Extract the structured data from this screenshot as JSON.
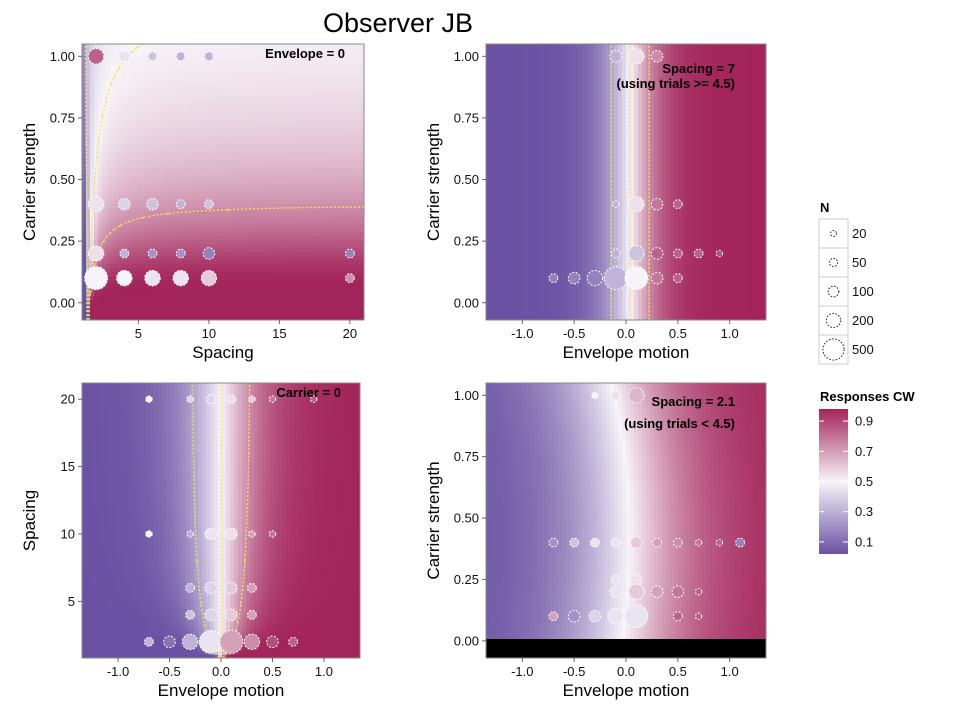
{
  "figure": {
    "title": "Observer JB",
    "legend_n_title": "N",
    "legend_n_entries": [
      "20",
      "50",
      "100",
      "200",
      "500"
    ],
    "legend_n_values": [
      20,
      50,
      100,
      200,
      500
    ],
    "legend_color_title": "Responses CW",
    "legend_color_ticks": [
      "0.9",
      "0.7",
      "0.5",
      "0.3",
      "0.1"
    ],
    "legend_color_values": [
      0.9,
      0.7,
      0.5,
      0.3,
      0.1
    ]
  },
  "colors": {
    "low": "#6a51a3",
    "mid": "#f7f4f9",
    "high": "#a3245a",
    "contour": "#f2e14a",
    "frame": "#888888"
  },
  "chart_data": [
    {
      "type": "heatmap",
      "panel_label": "Envelope = 0",
      "annotation": "",
      "xlabel": "Spacing",
      "ylabel": "Carrier strength",
      "xlim": [
        1,
        21
      ],
      "ylim": [
        -0.07,
        1.05
      ],
      "xticks": [
        5,
        10,
        15,
        20
      ],
      "xticklabels": [
        "5",
        "10",
        "15",
        "20"
      ],
      "yticks": [
        0,
        0.25,
        0.5,
        0.75,
        1
      ],
      "yticklabels": [
        "0.00",
        "0.25",
        "0.50",
        "0.75",
        "1.00"
      ],
      "contour_levels": [
        0.25,
        0.5,
        0.75
      ],
      "points": [
        {
          "x": 2,
          "y": 1.0,
          "n": 200,
          "p": 0.85
        },
        {
          "x": 4,
          "y": 1.0,
          "n": 100,
          "p": 0.45
        },
        {
          "x": 6,
          "y": 1.0,
          "n": 50,
          "p": 0.35
        },
        {
          "x": 8,
          "y": 1.0,
          "n": 50,
          "p": 0.3
        },
        {
          "x": 10,
          "y": 1.0,
          "n": 50,
          "p": 0.3
        },
        {
          "x": 2,
          "y": 0.4,
          "n": 200,
          "p": 0.45
        },
        {
          "x": 4,
          "y": 0.4,
          "n": 100,
          "p": 0.4
        },
        {
          "x": 6,
          "y": 0.4,
          "n": 100,
          "p": 0.35
        },
        {
          "x": 8,
          "y": 0.4,
          "n": 50,
          "p": 0.3
        },
        {
          "x": 10,
          "y": 0.4,
          "n": 50,
          "p": 0.35
        },
        {
          "x": 2,
          "y": 0.2,
          "n": 200,
          "p": 0.55
        },
        {
          "x": 4,
          "y": 0.2,
          "n": 50,
          "p": 0.3
        },
        {
          "x": 6,
          "y": 0.2,
          "n": 50,
          "p": 0.2
        },
        {
          "x": 8,
          "y": 0.2,
          "n": 50,
          "p": 0.2
        },
        {
          "x": 10,
          "y": 0.2,
          "n": 100,
          "p": 0.15
        },
        {
          "x": 20,
          "y": 0.2,
          "n": 50,
          "p": 0.15
        },
        {
          "x": 2,
          "y": 0.1,
          "n": 500,
          "p": 0.5
        },
        {
          "x": 4,
          "y": 0.1,
          "n": 200,
          "p": 0.5
        },
        {
          "x": 6,
          "y": 0.1,
          "n": 200,
          "p": 0.45
        },
        {
          "x": 8,
          "y": 0.1,
          "n": 200,
          "p": 0.45
        },
        {
          "x": 10,
          "y": 0.1,
          "n": 200,
          "p": 0.6
        },
        {
          "x": 20,
          "y": 0.1,
          "n": 50,
          "p": 0.75
        }
      ]
    },
    {
      "type": "heatmap",
      "panel_label": "Spacing = 7",
      "annotation": "(using trials >= 4.5)",
      "xlabel": "Envelope motion",
      "ylabel": "Carrier strength",
      "xlim": [
        -1.35,
        1.35
      ],
      "ylim": [
        -0.07,
        1.05
      ],
      "xticks": [
        -1,
        -0.5,
        0,
        0.5,
        1
      ],
      "xticklabels": [
        "-1.0",
        "-0.5",
        "0.0",
        "0.5",
        "1.0"
      ],
      "yticks": [
        0,
        0.25,
        0.5,
        0.75,
        1
      ],
      "yticklabels": [
        "0.00",
        "0.25",
        "0.50",
        "0.75",
        "1.00"
      ],
      "contour_levels": [
        0.25,
        0.5,
        0.75
      ],
      "points": [
        {
          "x": -0.1,
          "y": 1.0,
          "n": 100,
          "p": 0.3
        },
        {
          "x": 0.1,
          "y": 1.0,
          "n": 200,
          "p": 0.55
        },
        {
          "x": 0.3,
          "y": 1.0,
          "n": 100,
          "p": 0.75
        },
        {
          "x": -0.1,
          "y": 0.4,
          "n": 20,
          "p": 0.3
        },
        {
          "x": 0.1,
          "y": 0.4,
          "n": 200,
          "p": 0.55
        },
        {
          "x": 0.3,
          "y": 0.4,
          "n": 100,
          "p": 0.8
        },
        {
          "x": 0.5,
          "y": 0.4,
          "n": 50,
          "p": 0.85
        },
        {
          "x": -0.1,
          "y": 0.2,
          "n": 50,
          "p": 0.3
        },
        {
          "x": 0.1,
          "y": 0.2,
          "n": 200,
          "p": 0.35
        },
        {
          "x": 0.3,
          "y": 0.2,
          "n": 100,
          "p": 0.85
        },
        {
          "x": 0.5,
          "y": 0.2,
          "n": 50,
          "p": 0.85
        },
        {
          "x": 0.7,
          "y": 0.2,
          "n": 50,
          "p": 0.85
        },
        {
          "x": 0.9,
          "y": 0.2,
          "n": 20,
          "p": 0.9
        },
        {
          "x": -0.7,
          "y": 0.1,
          "n": 50,
          "p": 0.15
        },
        {
          "x": -0.5,
          "y": 0.1,
          "n": 100,
          "p": 0.15
        },
        {
          "x": -0.3,
          "y": 0.1,
          "n": 200,
          "p": 0.15
        },
        {
          "x": -0.1,
          "y": 0.1,
          "n": 500,
          "p": 0.3
        },
        {
          "x": 0.1,
          "y": 0.1,
          "n": 500,
          "p": 0.5
        },
        {
          "x": 0.3,
          "y": 0.1,
          "n": 100,
          "p": 0.8
        },
        {
          "x": 0.5,
          "y": 0.1,
          "n": 50,
          "p": 0.85
        }
      ]
    },
    {
      "type": "heatmap",
      "panel_label": "Carrier = 0",
      "annotation": "",
      "xlabel": "Envelope motion",
      "ylabel": "Spacing",
      "xlim": [
        -1.35,
        1.35
      ],
      "ylim": [
        0.8,
        21.2
      ],
      "xticks": [
        -1,
        -0.5,
        0,
        0.5,
        1
      ],
      "xticklabels": [
        "-1.0",
        "-0.5",
        "0.0",
        "0.5",
        "1.0"
      ],
      "yticks": [
        5,
        10,
        15,
        20
      ],
      "yticklabels": [
        "5",
        "10",
        "15",
        "20"
      ],
      "contour_levels": [
        0.25,
        0.5,
        0.75
      ],
      "points": [
        {
          "x": -0.7,
          "y": 20,
          "n": 20,
          "p": 0.5
        },
        {
          "x": -0.3,
          "y": 20,
          "n": 20,
          "p": 0.4
        },
        {
          "x": -0.1,
          "y": 20,
          "n": 50,
          "p": 0.4
        },
        {
          "x": 0.1,
          "y": 20,
          "n": 50,
          "p": 0.55
        },
        {
          "x": 0.3,
          "y": 20,
          "n": 20,
          "p": 0.6
        },
        {
          "x": 0.5,
          "y": 20,
          "n": 20,
          "p": 0.8
        },
        {
          "x": 0.9,
          "y": 20,
          "n": 20,
          "p": 0.85
        },
        {
          "x": -0.7,
          "y": 10,
          "n": 20,
          "p": 0.5
        },
        {
          "x": -0.3,
          "y": 10,
          "n": 20,
          "p": 0.3
        },
        {
          "x": -0.1,
          "y": 10,
          "n": 100,
          "p": 0.45
        },
        {
          "x": 0.1,
          "y": 10,
          "n": 100,
          "p": 0.55
        },
        {
          "x": 0.3,
          "y": 10,
          "n": 20,
          "p": 0.7
        },
        {
          "x": 0.5,
          "y": 10,
          "n": 20,
          "p": 0.8
        },
        {
          "x": -0.3,
          "y": 6,
          "n": 50,
          "p": 0.3
        },
        {
          "x": -0.1,
          "y": 6,
          "n": 100,
          "p": 0.4
        },
        {
          "x": 0.1,
          "y": 6,
          "n": 100,
          "p": 0.6
        },
        {
          "x": 0.3,
          "y": 6,
          "n": 50,
          "p": 0.7
        },
        {
          "x": -0.1,
          "y": 4,
          "n": 100,
          "p": 0.4
        },
        {
          "x": 0.1,
          "y": 4,
          "n": 100,
          "p": 0.6
        },
        {
          "x": 0.3,
          "y": 4,
          "n": 50,
          "p": 0.7
        },
        {
          "x": -0.3,
          "y": 4,
          "n": 50,
          "p": 0.35
        },
        {
          "x": -0.7,
          "y": 2,
          "n": 50,
          "p": 0.3
        },
        {
          "x": -0.5,
          "y": 2,
          "n": 100,
          "p": 0.1
        },
        {
          "x": -0.3,
          "y": 2,
          "n": 200,
          "p": 0.3
        },
        {
          "x": -0.1,
          "y": 2,
          "n": 500,
          "p": 0.45
        },
        {
          "x": 0.1,
          "y": 2,
          "n": 500,
          "p": 0.7
        },
        {
          "x": 0.3,
          "y": 2,
          "n": 200,
          "p": 0.75
        },
        {
          "x": 0.5,
          "y": 2,
          "n": 100,
          "p": 0.9
        },
        {
          "x": 0.7,
          "y": 2,
          "n": 50,
          "p": 0.85
        }
      ]
    },
    {
      "type": "heatmap",
      "panel_label": "Spacing = 2.1",
      "annotation": "(using trials < 4.5)",
      "xlabel": "Envelope motion",
      "ylabel": "Carrier strength",
      "xlim": [
        -1.35,
        1.35
      ],
      "ylim": [
        -0.07,
        1.05
      ],
      "xticks": [
        -1,
        -0.5,
        0,
        0.5,
        1
      ],
      "xticklabels": [
        "-1.0",
        "-0.5",
        "0.0",
        "0.5",
        "1.0"
      ],
      "yticks": [
        0,
        0.25,
        0.5,
        0.75,
        1
      ],
      "yticklabels": [
        "0.00",
        "0.25",
        "0.50",
        "0.75",
        "1.00"
      ],
      "contour_levels": [
        0.25,
        0.5,
        0.75
      ],
      "points": [
        {
          "x": -0.3,
          "y": 1.0,
          "n": 20,
          "p": 0.5
        },
        {
          "x": -0.1,
          "y": 1.0,
          "n": 50,
          "p": 0.55
        },
        {
          "x": 0.1,
          "y": 1.0,
          "n": 200,
          "p": 0.65
        },
        {
          "x": -0.7,
          "y": 0.4,
          "n": 50,
          "p": 0.2
        },
        {
          "x": -0.5,
          "y": 0.4,
          "n": 50,
          "p": 0.35
        },
        {
          "x": -0.3,
          "y": 0.4,
          "n": 50,
          "p": 0.45
        },
        {
          "x": -0.1,
          "y": 0.4,
          "n": 50,
          "p": 0.45
        },
        {
          "x": 0.1,
          "y": 0.4,
          "n": 100,
          "p": 0.6
        },
        {
          "x": 0.3,
          "y": 0.4,
          "n": 50,
          "p": 0.7
        },
        {
          "x": 0.5,
          "y": 0.4,
          "n": 50,
          "p": 0.75
        },
        {
          "x": 0.7,
          "y": 0.4,
          "n": 20,
          "p": 0.8
        },
        {
          "x": 0.9,
          "y": 0.4,
          "n": 20,
          "p": 0.85
        },
        {
          "x": 1.1,
          "y": 0.4,
          "n": 50,
          "p": 0.15
        },
        {
          "x": -0.1,
          "y": 0.25,
          "n": 50,
          "p": 0.45
        },
        {
          "x": 0.1,
          "y": 0.25,
          "n": 100,
          "p": 0.55
        },
        {
          "x": -0.1,
          "y": 0.2,
          "n": 100,
          "p": 0.45
        },
        {
          "x": 0.1,
          "y": 0.2,
          "n": 200,
          "p": 0.6
        },
        {
          "x": 0.3,
          "y": 0.2,
          "n": 100,
          "p": 0.7
        },
        {
          "x": 0.5,
          "y": 0.2,
          "n": 100,
          "p": 0.8
        },
        {
          "x": 0.7,
          "y": 0.2,
          "n": 20,
          "p": 0.85
        },
        {
          "x": -0.7,
          "y": 0.1,
          "n": 50,
          "p": 0.7
        },
        {
          "x": -0.5,
          "y": 0.1,
          "n": 100,
          "p": 0.2
        },
        {
          "x": -0.3,
          "y": 0.1,
          "n": 100,
          "p": 0.4
        },
        {
          "x": -0.1,
          "y": 0.1,
          "n": 200,
          "p": 0.45
        },
        {
          "x": 0.1,
          "y": 0.1,
          "n": 500,
          "p": 0.45
        },
        {
          "x": 0.5,
          "y": 0.1,
          "n": 50,
          "p": 0.85
        },
        {
          "x": 0.7,
          "y": 0.1,
          "n": 20,
          "p": 0.85
        }
      ]
    }
  ]
}
